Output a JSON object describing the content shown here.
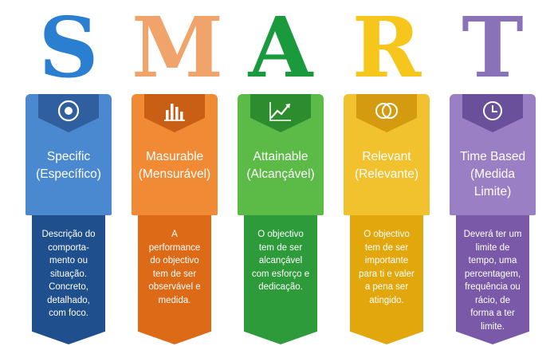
{
  "columns": [
    {
      "letter": "S",
      "title": "Specific",
      "subtitle": "(Específico)",
      "icon": "target-icon",
      "description_lines": [
        "Descrição do",
        "comporta-",
        "mento ou",
        "situação.",
        "Concreto,",
        "detalhado,",
        "com foco."
      ],
      "colors": {
        "letter": "#2a7fd0",
        "tab": "#4a88cf",
        "pent": "#2f5f9e",
        "bottom": "#1f4f8d"
      }
    },
    {
      "letter": "M",
      "title": "Masurable",
      "subtitle": "(Mensurável)",
      "icon": "bar-chart-icon",
      "description_lines": [
        "A",
        "performance",
        "do objectivo",
        "tem de ser",
        "observável e",
        "medida."
      ],
      "colors": {
        "letter": "#f0a36a",
        "tab": "#f08a35",
        "pent": "#c95f14",
        "bottom": "#dc6a16"
      }
    },
    {
      "letter": "A",
      "title": "Attainable",
      "subtitle": "(Alcançável)",
      "icon": "trend-up-icon",
      "description_lines": [
        "O objectivo",
        "tem de ser",
        "alcançável",
        "com esforço e",
        "dedicação."
      ],
      "colors": {
        "letter": "#1a9a3c",
        "tab": "#5cba47",
        "pent": "#2d8c2d",
        "bottom": "#2e9b3a"
      }
    },
    {
      "letter": "R",
      "title": "Relevant",
      "subtitle": "(Relevante)",
      "icon": "rings-icon",
      "description_lines": [
        "O objectivo",
        "tem de ser",
        "importante",
        "para ti e valer",
        "a pena ser",
        "atingido."
      ],
      "colors": {
        "letter": "#f6c61c",
        "tab": "#f2c12e",
        "pent": "#d49a10",
        "bottom": "#e1a70d"
      }
    },
    {
      "letter": "T",
      "title": "Time Based",
      "subtitle": "(Medida",
      "subtitle2": "Limite)",
      "icon": "clock-icon",
      "description_lines": [
        "Deverá ter um",
        "limite de",
        "tempo, uma",
        "percentagem,",
        "frequência ou",
        "rácio, de",
        "forma a ter",
        "limite."
      ],
      "colors": {
        "letter": "#8a72b8",
        "tab": "#9b7fc4",
        "pent": "#6a4f9a",
        "bottom": "#7a5aa8"
      }
    }
  ]
}
